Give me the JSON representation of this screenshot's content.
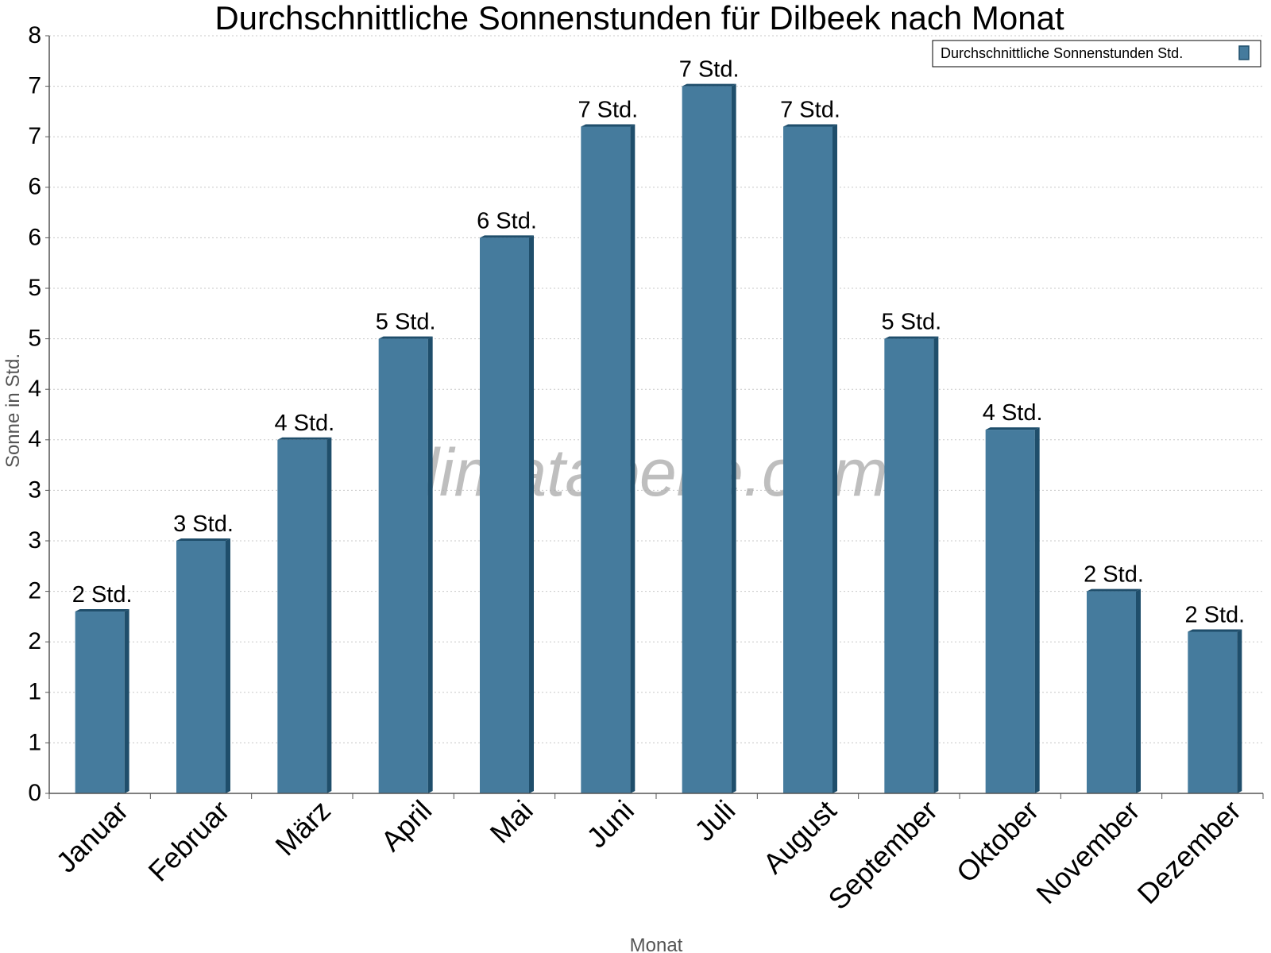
{
  "chart_data": {
    "type": "bar",
    "title": "Durchschnittliche Sonnenstunden für Dilbeek nach Monat",
    "xlabel": "Monat",
    "ylabel": "Sonne in Std.",
    "categories": [
      "Januar",
      "Februar",
      "März",
      "April",
      "Mai",
      "Juni",
      "Juli",
      "August",
      "September",
      "Oktober",
      "November",
      "Dezember"
    ],
    "series": [
      {
        "name": "Durchschnittliche Sonnenstunden Std.",
        "values": [
          1.8,
          2.5,
          3.5,
          4.5,
          5.5,
          6.6,
          7.0,
          6.6,
          4.5,
          3.6,
          2.0,
          1.6
        ],
        "data_labels": [
          "2 Std.",
          "3 Std.",
          "4 Std.",
          "5 Std.",
          "6 Std.",
          "7 Std.",
          "7 Std.",
          "7 Std.",
          "5 Std.",
          "4 Std.",
          "2 Std.",
          "2 Std."
        ],
        "color": "#457b9d"
      }
    ],
    "ylim": [
      0,
      7.5
    ],
    "yticks": [
      0,
      0.5,
      1,
      1.5,
      2,
      2.5,
      3,
      3.5,
      4,
      4.5,
      5,
      5.5,
      6,
      6.5,
      7,
      7.5
    ],
    "ytick_labels": [
      "0",
      "1",
      "1",
      "2",
      "2",
      "3",
      "3",
      "4",
      "4",
      "5",
      "5",
      "6",
      "6",
      "7",
      "7",
      "8"
    ],
    "grid": true,
    "legend_position": "top-right",
    "watermark": "klimatabelle.com"
  }
}
